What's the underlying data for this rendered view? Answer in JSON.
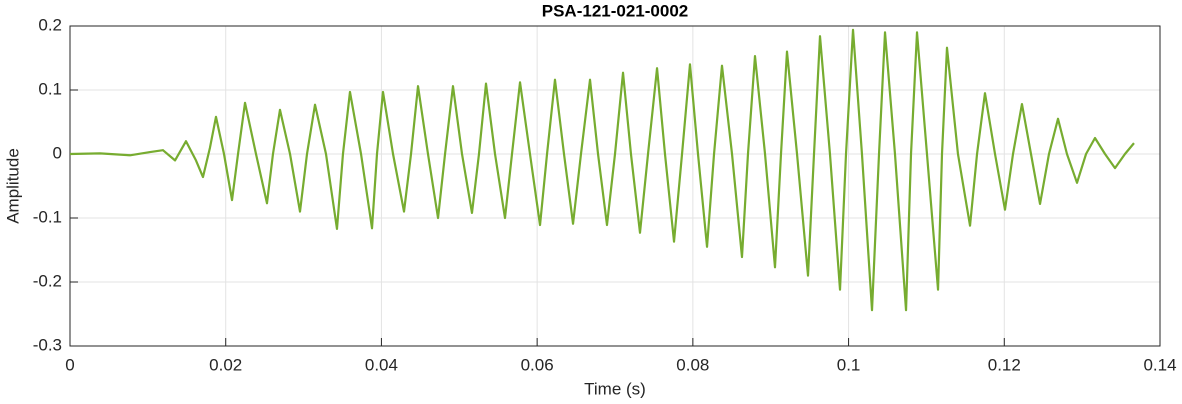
{
  "chart_data": {
    "type": "line",
    "title": "PSA-121-021-0002",
    "xlabel": "Time (s)",
    "ylabel": "Amplitude",
    "xlim": [
      0,
      0.14
    ],
    "xticks": [
      0,
      0.02,
      0.04,
      0.06,
      0.08,
      0.1,
      0.12,
      0.14
    ],
    "ylim": [
      -0.3,
      0.2
    ],
    "yticks": [
      -0.3,
      -0.2,
      -0.1,
      0,
      0.1,
      0.2
    ],
    "grid": true,
    "series": [
      {
        "color": "#77ac30",
        "x": [
          0,
          0.00385,
          0.00771,
          0.01028,
          0.01194,
          0.01349,
          0.0149,
          0.01618,
          0.01708,
          0.01798,
          0.01875,
          0.01978,
          0.02081,
          0.02158,
          0.02248,
          0.02389,
          0.0253,
          0.02607,
          0.02697,
          0.02826,
          0.02954,
          0.03044,
          0.03147,
          0.03288,
          0.03429,
          0.03506,
          0.03596,
          0.03738,
          0.03879,
          0.03943,
          0.0402,
          0.04149,
          0.0429,
          0.0438,
          0.0447,
          0.04598,
          0.04727,
          0.04817,
          0.04919,
          0.05035,
          0.05163,
          0.05253,
          0.05343,
          0.05459,
          0.05587,
          0.05677,
          0.0578,
          0.05908,
          0.06037,
          0.06127,
          0.06229,
          0.06345,
          0.06461,
          0.06563,
          0.06679,
          0.06782,
          0.06897,
          0.07,
          0.07103,
          0.07205,
          0.07321,
          0.07424,
          0.0754,
          0.07642,
          0.07758,
          0.07861,
          0.07963,
          0.08066,
          0.08182,
          0.08272,
          0.08374,
          0.08503,
          0.08631,
          0.08708,
          0.08798,
          0.08927,
          0.09055,
          0.09132,
          0.09209,
          0.09338,
          0.09479,
          0.09556,
          0.09633,
          0.09761,
          0.0989,
          0.09967,
          0.10057,
          0.10172,
          0.10301,
          0.10391,
          0.10468,
          0.10596,
          0.10738,
          0.10802,
          0.10879,
          0.11007,
          0.11149,
          0.112,
          0.11264,
          0.11405,
          0.1156,
          0.1165,
          0.11752,
          0.11881,
          0.12009,
          0.12112,
          0.12227,
          0.12343,
          0.12459,
          0.12574,
          0.1269,
          0.12805,
          0.12934,
          0.1305,
          0.13165,
          0.13294,
          0.13422,
          0.1355,
          0.13666
        ],
        "values": [
          0,
          0.001,
          -0.002,
          0.003,
          0.006,
          -0.01,
          0.02,
          -0.01,
          -0.036,
          0.01,
          0.058,
          0,
          -0.072,
          0,
          0.08,
          0,
          -0.077,
          0,
          0.069,
          0,
          -0.09,
          0,
          0.077,
          0,
          -0.117,
          0,
          0.097,
          0,
          -0.116,
          0,
          0.097,
          0,
          -0.09,
          0,
          0.106,
          0,
          -0.1,
          0,
          0.106,
          0,
          -0.092,
          0,
          0.11,
          0,
          -0.1,
          0,
          0.112,
          0,
          -0.111,
          0,
          0.116,
          0,
          -0.109,
          0,
          0.116,
          0,
          -0.111,
          0,
          0.127,
          0,
          -0.123,
          0,
          0.134,
          0,
          -0.137,
          0,
          0.14,
          0,
          -0.145,
          0,
          0.138,
          0,
          -0.161,
          0,
          0.153,
          0,
          -0.177,
          0,
          0.16,
          0,
          -0.19,
          0,
          0.184,
          0,
          -0.212,
          0,
          0.194,
          0,
          -0.244,
          0,
          0.19,
          0,
          -0.244,
          0,
          0.19,
          0,
          -0.212,
          0,
          0.166,
          0,
          -0.112,
          0,
          0.095,
          0,
          -0.087,
          0,
          0.078,
          0,
          -0.078,
          0,
          0.055,
          0,
          -0.045,
          0,
          0.025,
          0,
          -0.022,
          0,
          0.017
        ]
      }
    ]
  }
}
